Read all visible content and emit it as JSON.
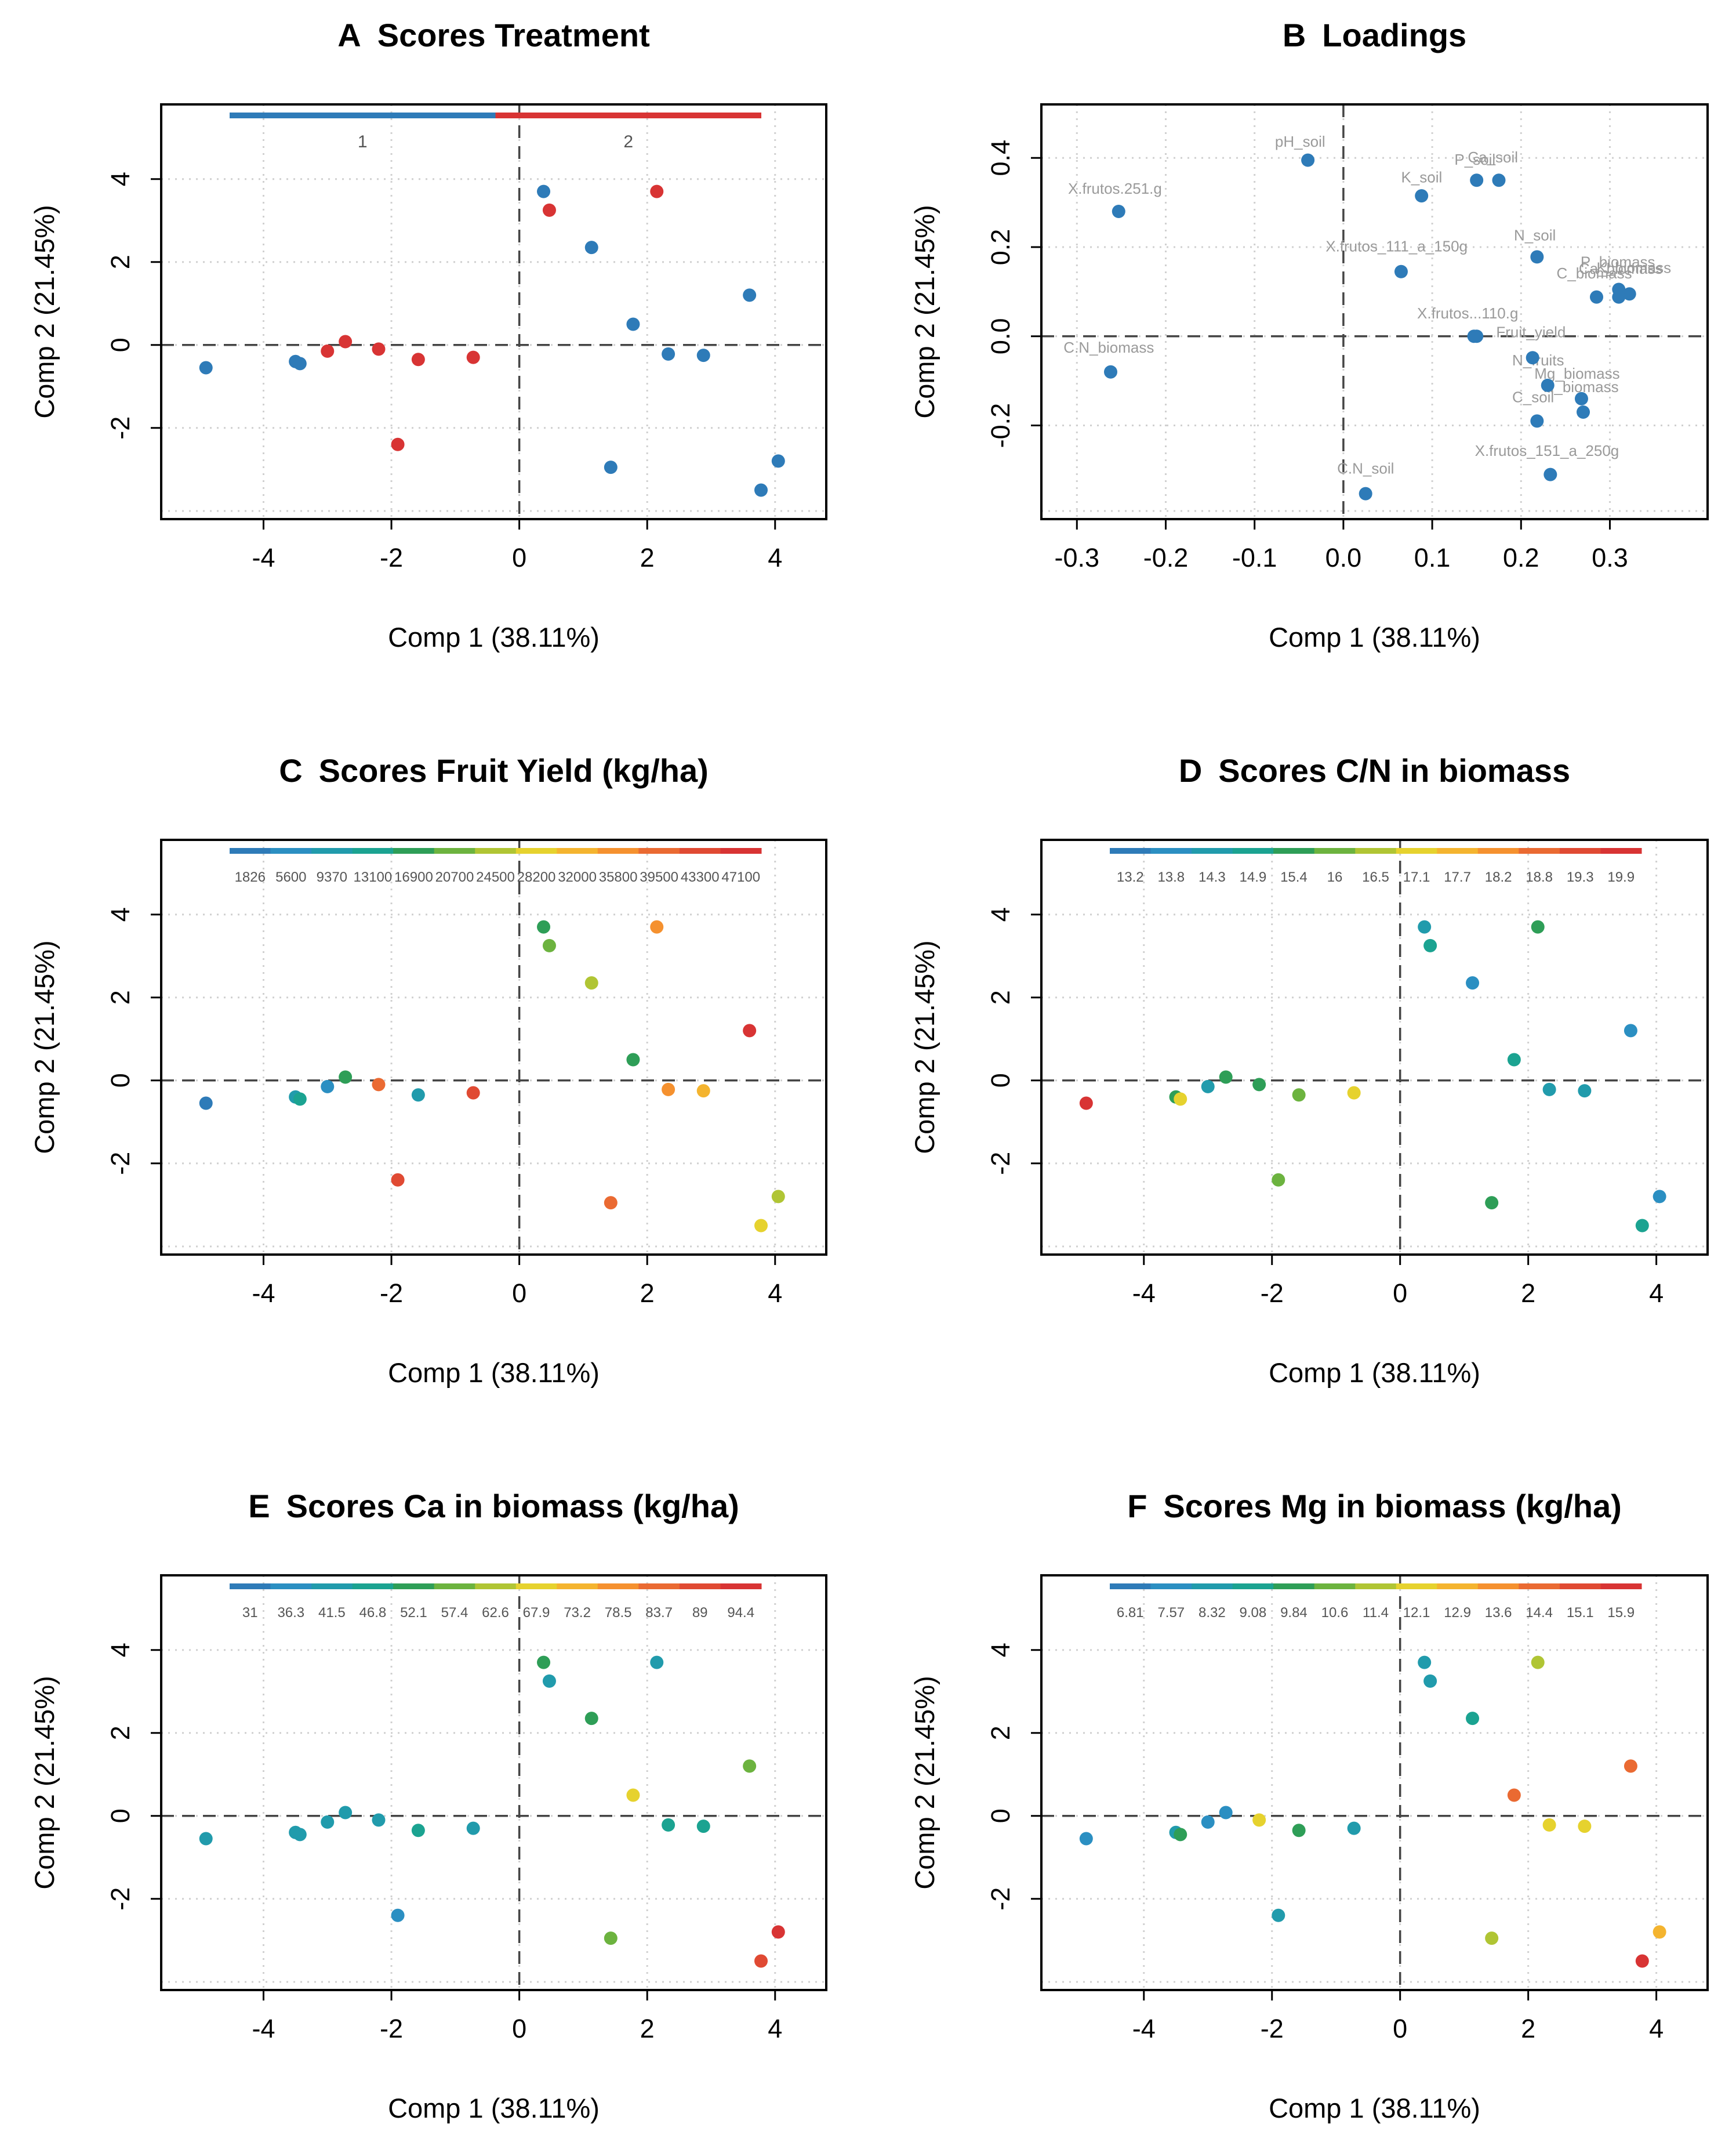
{
  "figure": {
    "shared_xlabel": "Comp 1 (38.11%)",
    "shared_ylabel": "Comp 2 (21.45%)"
  },
  "chart_data": [
    {
      "id": "A",
      "panel_letter": "A",
      "title": "Scores Treatment",
      "type": "scatter",
      "xlabel": "Comp 1 (38.11%)",
      "ylabel": "Comp 2 (21.45%)",
      "xlim": [
        -5.6,
        4.8
      ],
      "ylim": [
        -4.2,
        5.8
      ],
      "xticks": [
        -4,
        -2,
        0,
        2,
        4
      ],
      "yticks": [
        -2,
        0,
        2,
        4
      ],
      "grid": true,
      "reference_lines": {
        "x": 0,
        "y": 0
      },
      "legend": {
        "kind": "categorical",
        "position": "top",
        "entries": [
          {
            "label": "1",
            "color": "#2E7BB8"
          },
          {
            "label": "2",
            "color": "#D83434"
          }
        ]
      },
      "points": [
        {
          "x": -4.9,
          "y": -0.55,
          "color": "#2E7BB8"
        },
        {
          "x": -3.5,
          "y": -0.4,
          "color": "#2E7BB8"
        },
        {
          "x": -3.43,
          "y": -0.45,
          "color": "#2E7BB8"
        },
        {
          "x": -3.0,
          "y": -0.15,
          "color": "#D83434"
        },
        {
          "x": -2.72,
          "y": 0.08,
          "color": "#D83434"
        },
        {
          "x": -2.2,
          "y": -0.1,
          "color": "#D83434"
        },
        {
          "x": -1.58,
          "y": -0.35,
          "color": "#D83434"
        },
        {
          "x": -0.72,
          "y": -0.3,
          "color": "#D83434"
        },
        {
          "x": -1.9,
          "y": -2.4,
          "color": "#D83434"
        },
        {
          "x": 0.38,
          "y": 3.7,
          "color": "#2E7BB8"
        },
        {
          "x": 0.47,
          "y": 3.25,
          "color": "#D83434"
        },
        {
          "x": 2.15,
          "y": 3.7,
          "color": "#D83434"
        },
        {
          "x": 1.13,
          "y": 2.35,
          "color": "#2E7BB8"
        },
        {
          "x": 1.78,
          "y": 0.5,
          "color": "#2E7BB8"
        },
        {
          "x": 2.33,
          "y": -0.22,
          "color": "#2E7BB8"
        },
        {
          "x": 2.88,
          "y": -0.25,
          "color": "#2E7BB8"
        },
        {
          "x": 3.6,
          "y": 1.2,
          "color": "#2E7BB8"
        },
        {
          "x": 1.43,
          "y": -2.95,
          "color": "#2E7BB8"
        },
        {
          "x": 4.05,
          "y": -2.8,
          "color": "#2E7BB8"
        },
        {
          "x": 3.78,
          "y": -3.5,
          "color": "#2E7BB8"
        }
      ]
    },
    {
      "id": "B",
      "panel_letter": "B",
      "title": "Loadings",
      "type": "scatter",
      "xlabel": "Comp 1 (38.11%)",
      "ylabel": "Comp 2 (21.45%)",
      "xlim": [
        -0.34,
        0.41
      ],
      "ylim": [
        -0.41,
        0.52
      ],
      "xticks": [
        -0.3,
        -0.2,
        -0.1,
        0.0,
        0.1,
        0.2,
        0.3
      ],
      "yticks": [
        -0.2,
        0.0,
        0.2,
        0.4
      ],
      "xticklabels": [
        "-0.3",
        "-0.2",
        "-0.1",
        "0.0",
        "0.1",
        "0.2",
        "0.3"
      ],
      "yticklabels": [
        "-0.2",
        "0.0",
        "0.2",
        "0.4"
      ],
      "grid": true,
      "reference_lines": {
        "x": 0,
        "y": 0
      },
      "points": [
        {
          "x": -0.04,
          "y": 0.395,
          "color": "#2E7BB8",
          "label": "pH_soil",
          "lx": -0.077,
          "ly": 0.425
        },
        {
          "x": -0.253,
          "y": 0.28,
          "color": "#2E7BB8",
          "label": "X.frutos.251.g",
          "lx": -0.31,
          "ly": 0.32
        },
        {
          "x": 0.088,
          "y": 0.315,
          "color": "#2E7BB8",
          "label": "K_soil",
          "lx": 0.065,
          "ly": 0.345
        },
        {
          "x": 0.15,
          "y": 0.35,
          "color": "#2E7BB8",
          "label": "P_soil",
          "lx": 0.125,
          "ly": 0.385
        },
        {
          "x": 0.175,
          "y": 0.35,
          "color": "#2E7BB8",
          "label": "Ca_soil",
          "lx": 0.14,
          "ly": 0.39
        },
        {
          "x": 0.065,
          "y": 0.145,
          "color": "#2E7BB8",
          "label": "X.frutos_111_a_150g",
          "lx": -0.02,
          "ly": 0.19
        },
        {
          "x": 0.218,
          "y": 0.178,
          "color": "#2E7BB8",
          "label": "N_soil",
          "lx": 0.192,
          "ly": 0.215
        },
        {
          "x": 0.31,
          "y": 0.105,
          "color": "#2E7BB8",
          "label": "P_biomass",
          "lx": 0.267,
          "ly": 0.155
        },
        {
          "x": 0.322,
          "y": 0.095,
          "color": "#2E7BB8",
          "label": "C_biomass",
          "lx": 0.24,
          "ly": 0.13
        },
        {
          "x": 0.285,
          "y": 0.088,
          "color": "#2E7BB8",
          "label": "Ca_biomass",
          "lx": 0.265,
          "ly": 0.14
        },
        {
          "x": 0.31,
          "y": 0.088,
          "color": "#2E7BB8",
          "label": "K_biomass",
          "lx": 0.285,
          "ly": 0.142
        },
        {
          "x": 0.147,
          "y": 0.0,
          "color": "#2E7BB8",
          "label": "X.frutos...110.g",
          "lx": 0.083,
          "ly": 0.04
        },
        {
          "x": 0.15,
          "y": 0.0,
          "color": "#2E7BB8",
          "label": "Fruit_yield",
          "lx": 0.172,
          "ly": -0.002
        },
        {
          "x": 0.213,
          "y": -0.048,
          "color": "#2E7BB8",
          "label": "N_fruits",
          "lx": 0.19,
          "ly": -0.065
        },
        {
          "x": 0.23,
          "y": -0.11,
          "color": "#2E7BB8",
          "label": "Mg_biomass",
          "lx": 0.215,
          "ly": -0.095
        },
        {
          "x": 0.268,
          "y": -0.14,
          "color": "#2E7BB8",
          "label": "N_biomass",
          "lx": 0.225,
          "ly": -0.125
        },
        {
          "x": 0.27,
          "y": -0.17,
          "color": "#2E7BB8",
          "label": "C_soil",
          "lx": 0.19,
          "ly": -0.148
        },
        {
          "x": 0.218,
          "y": -0.19,
          "color": "#2E7BB8",
          "label": "",
          "lx": 0.0,
          "ly": 0.0
        },
        {
          "x": 0.233,
          "y": -0.31,
          "color": "#2E7BB8",
          "label": "X.frutos_151_a_250g",
          "lx": 0.148,
          "ly": -0.268
        },
        {
          "x": 0.025,
          "y": -0.353,
          "color": "#2E7BB8",
          "label": "C.N_soil",
          "lx": -0.007,
          "ly": -0.308
        },
        {
          "x": -0.262,
          "y": -0.08,
          "color": "#2E7BB8",
          "label": "C.N_biomass",
          "lx": -0.315,
          "ly": -0.037
        }
      ]
    },
    {
      "id": "C",
      "panel_letter": "C",
      "title": "Scores Fruit Yield (kg/ha)",
      "type": "scatter",
      "xlabel": "Comp 1 (38.11%)",
      "ylabel": "Comp 2 (21.45%)",
      "xlim": [
        -5.6,
        4.8
      ],
      "ylim": [
        -4.2,
        5.8
      ],
      "xticks": [
        -4,
        -2,
        0,
        2,
        4
      ],
      "yticks": [
        -2,
        0,
        2,
        4
      ],
      "grid": true,
      "reference_lines": {
        "x": 0,
        "y": 0
      },
      "legend": {
        "kind": "gradient",
        "position": "top",
        "colors": [
          "#2E7BB8",
          "#2B8FC2",
          "#219BAC",
          "#1BA391",
          "#2E9E57",
          "#6CB33F",
          "#B0C534",
          "#E6D22E",
          "#F4B42F",
          "#F5912F",
          "#EA6A32",
          "#E04A33",
          "#D83434"
        ],
        "labels": [
          "1826",
          "5600",
          "9370",
          "13100",
          "16900",
          "20700",
          "24500",
          "28200",
          "32000",
          "35800",
          "39500",
          "43300",
          "47100"
        ]
      },
      "points": [
        {
          "x": -4.9,
          "y": -0.55,
          "color": "#2E7BB8"
        },
        {
          "x": -3.5,
          "y": -0.4,
          "color": "#219BAC"
        },
        {
          "x": -3.43,
          "y": -0.45,
          "color": "#1BA391"
        },
        {
          "x": -3.0,
          "y": -0.15,
          "color": "#2B8FC2"
        },
        {
          "x": -2.72,
          "y": 0.08,
          "color": "#2E9E57"
        },
        {
          "x": -2.2,
          "y": -0.1,
          "color": "#EA6A32"
        },
        {
          "x": -1.58,
          "y": -0.35,
          "color": "#219BAC"
        },
        {
          "x": -0.72,
          "y": -0.3,
          "color": "#E04A33"
        },
        {
          "x": -1.9,
          "y": -2.4,
          "color": "#E04A33"
        },
        {
          "x": 0.38,
          "y": 3.7,
          "color": "#2E9E57"
        },
        {
          "x": 0.47,
          "y": 3.25,
          "color": "#6CB33F"
        },
        {
          "x": 2.15,
          "y": 3.7,
          "color": "#F5912F"
        },
        {
          "x": 1.13,
          "y": 2.35,
          "color": "#B0C534"
        },
        {
          "x": 1.78,
          "y": 0.5,
          "color": "#2E9E57"
        },
        {
          "x": 2.33,
          "y": -0.22,
          "color": "#F5912F"
        },
        {
          "x": 2.88,
          "y": -0.25,
          "color": "#F4B42F"
        },
        {
          "x": 3.6,
          "y": 1.2,
          "color": "#D83434"
        },
        {
          "x": 1.43,
          "y": -2.95,
          "color": "#EA6A32"
        },
        {
          "x": 4.05,
          "y": -2.8,
          "color": "#B0C534"
        },
        {
          "x": 3.78,
          "y": -3.5,
          "color": "#E6D22E"
        }
      ]
    },
    {
      "id": "D",
      "panel_letter": "D",
      "title": "Scores C/N in biomass",
      "type": "scatter",
      "xlabel": "Comp 1 (38.11%)",
      "ylabel": "Comp 2 (21.45%)",
      "xlim": [
        -5.6,
        4.8
      ],
      "ylim": [
        -4.2,
        5.8
      ],
      "xticks": [
        -4,
        -2,
        0,
        2,
        4
      ],
      "yticks": [
        -2,
        0,
        2,
        4
      ],
      "grid": true,
      "reference_lines": {
        "x": 0,
        "y": 0
      },
      "legend": {
        "kind": "gradient",
        "position": "top",
        "colors": [
          "#2E7BB8",
          "#2B8FC2",
          "#219BAC",
          "#1BA391",
          "#2E9E57",
          "#6CB33F",
          "#B0C534",
          "#E6D22E",
          "#F4B42F",
          "#F5912F",
          "#EA6A32",
          "#E04A33",
          "#D83434"
        ],
        "labels": [
          "13.2",
          "13.8",
          "14.3",
          "14.9",
          "15.4",
          "16",
          "16.5",
          "17.1",
          "17.7",
          "18.2",
          "18.8",
          "19.3",
          "19.9"
        ]
      },
      "points": [
        {
          "x": -4.9,
          "y": -0.55,
          "color": "#D83434"
        },
        {
          "x": -3.5,
          "y": -0.4,
          "color": "#2E9E57"
        },
        {
          "x": -3.43,
          "y": -0.45,
          "color": "#E6D22E"
        },
        {
          "x": -3.0,
          "y": -0.15,
          "color": "#219BAC"
        },
        {
          "x": -2.72,
          "y": 0.08,
          "color": "#2E9E57"
        },
        {
          "x": -2.2,
          "y": -0.1,
          "color": "#2E9E57"
        },
        {
          "x": -1.58,
          "y": -0.35,
          "color": "#6CB33F"
        },
        {
          "x": -0.72,
          "y": -0.3,
          "color": "#E6D22E"
        },
        {
          "x": -1.9,
          "y": -2.4,
          "color": "#6CB33F"
        },
        {
          "x": 0.38,
          "y": 3.7,
          "color": "#219BAC"
        },
        {
          "x": 0.47,
          "y": 3.25,
          "color": "#1BA391"
        },
        {
          "x": 2.15,
          "y": 3.7,
          "color": "#2E9E57"
        },
        {
          "x": 1.13,
          "y": 2.35,
          "color": "#2B8FC2"
        },
        {
          "x": 1.78,
          "y": 0.5,
          "color": "#1BA391"
        },
        {
          "x": 2.33,
          "y": -0.22,
          "color": "#219BAC"
        },
        {
          "x": 2.88,
          "y": -0.25,
          "color": "#219BAC"
        },
        {
          "x": 3.6,
          "y": 1.2,
          "color": "#2B8FC2"
        },
        {
          "x": 1.43,
          "y": -2.95,
          "color": "#2E9E57"
        },
        {
          "x": 4.05,
          "y": -2.8,
          "color": "#2B8FC2"
        },
        {
          "x": 3.78,
          "y": -3.5,
          "color": "#1BA391"
        }
      ]
    },
    {
      "id": "E",
      "panel_letter": "E",
      "title": "Scores Ca in biomass (kg/ha)",
      "type": "scatter",
      "xlabel": "Comp 1 (38.11%)",
      "ylabel": "Comp 2 (21.45%)",
      "xlim": [
        -5.6,
        4.8
      ],
      "ylim": [
        -4.2,
        5.8
      ],
      "xticks": [
        -4,
        -2,
        0,
        2,
        4
      ],
      "yticks": [
        -2,
        0,
        2,
        4
      ],
      "grid": true,
      "reference_lines": {
        "x": 0,
        "y": 0
      },
      "legend": {
        "kind": "gradient",
        "position": "top",
        "colors": [
          "#2E7BB8",
          "#2B8FC2",
          "#219BAC",
          "#1BA391",
          "#2E9E57",
          "#6CB33F",
          "#B0C534",
          "#E6D22E",
          "#F4B42F",
          "#F5912F",
          "#EA6A32",
          "#E04A33",
          "#D83434"
        ],
        "labels": [
          "31",
          "36.3",
          "41.5",
          "46.8",
          "52.1",
          "57.4",
          "62.6",
          "67.9",
          "73.2",
          "78.5",
          "83.7",
          "89",
          "94.4"
        ]
      },
      "points": [
        {
          "x": -4.9,
          "y": -0.55,
          "color": "#219BAC"
        },
        {
          "x": -3.5,
          "y": -0.4,
          "color": "#219BAC"
        },
        {
          "x": -3.43,
          "y": -0.45,
          "color": "#219BAC"
        },
        {
          "x": -3.0,
          "y": -0.15,
          "color": "#219BAC"
        },
        {
          "x": -2.72,
          "y": 0.08,
          "color": "#219BAC"
        },
        {
          "x": -2.2,
          "y": -0.1,
          "color": "#219BAC"
        },
        {
          "x": -1.58,
          "y": -0.35,
          "color": "#1BA391"
        },
        {
          "x": -0.72,
          "y": -0.3,
          "color": "#219BAC"
        },
        {
          "x": -1.9,
          "y": -2.4,
          "color": "#2B8FC2"
        },
        {
          "x": 0.38,
          "y": 3.7,
          "color": "#2E9E57"
        },
        {
          "x": 0.47,
          "y": 3.25,
          "color": "#219BAC"
        },
        {
          "x": 2.15,
          "y": 3.7,
          "color": "#219BAC"
        },
        {
          "x": 1.13,
          "y": 2.35,
          "color": "#2E9E57"
        },
        {
          "x": 1.78,
          "y": 0.5,
          "color": "#E6D22E"
        },
        {
          "x": 2.33,
          "y": -0.22,
          "color": "#1BA391"
        },
        {
          "x": 2.88,
          "y": -0.25,
          "color": "#1BA391"
        },
        {
          "x": 3.6,
          "y": 1.2,
          "color": "#6CB33F"
        },
        {
          "x": 1.43,
          "y": -2.95,
          "color": "#6CB33F"
        },
        {
          "x": 4.05,
          "y": -2.8,
          "color": "#D83434"
        },
        {
          "x": 3.78,
          "y": -3.5,
          "color": "#E04A33"
        }
      ]
    },
    {
      "id": "F",
      "panel_letter": "F",
      "title": "Scores Mg in biomass (kg/ha)",
      "type": "scatter",
      "xlabel": "Comp 1 (38.11%)",
      "ylabel": "Comp 2 (21.45%)",
      "xlim": [
        -5.6,
        4.8
      ],
      "ylim": [
        -4.2,
        5.8
      ],
      "xticks": [
        -4,
        -2,
        0,
        2,
        4
      ],
      "yticks": [
        -2,
        0,
        2,
        4
      ],
      "grid": true,
      "reference_lines": {
        "x": 0,
        "y": 0
      },
      "legend": {
        "kind": "gradient",
        "position": "top",
        "colors": [
          "#2E7BB8",
          "#2B8FC2",
          "#219BAC",
          "#1BA391",
          "#2E9E57",
          "#6CB33F",
          "#B0C534",
          "#E6D22E",
          "#F4B42F",
          "#F5912F",
          "#EA6A32",
          "#E04A33",
          "#D83434"
        ],
        "labels": [
          "6.81",
          "7.57",
          "8.32",
          "9.08",
          "9.84",
          "10.6",
          "11.4",
          "12.1",
          "12.9",
          "13.6",
          "14.4",
          "15.1",
          "15.9"
        ]
      },
      "points": [
        {
          "x": -4.9,
          "y": -0.55,
          "color": "#2B8FC2"
        },
        {
          "x": -3.5,
          "y": -0.4,
          "color": "#219BAC"
        },
        {
          "x": -3.43,
          "y": -0.45,
          "color": "#2E9E57"
        },
        {
          "x": -3.0,
          "y": -0.15,
          "color": "#2B8FC2"
        },
        {
          "x": -2.72,
          "y": 0.08,
          "color": "#2B8FC2"
        },
        {
          "x": -2.2,
          "y": -0.1,
          "color": "#E6D22E"
        },
        {
          "x": -1.58,
          "y": -0.35,
          "color": "#2E9E57"
        },
        {
          "x": -0.72,
          "y": -0.3,
          "color": "#219BAC"
        },
        {
          "x": -1.9,
          "y": -2.4,
          "color": "#219BAC"
        },
        {
          "x": 0.38,
          "y": 3.7,
          "color": "#219BAC"
        },
        {
          "x": 0.47,
          "y": 3.25,
          "color": "#219BAC"
        },
        {
          "x": 2.15,
          "y": 3.7,
          "color": "#B0C534"
        },
        {
          "x": 1.13,
          "y": 2.35,
          "color": "#1BA391"
        },
        {
          "x": 1.78,
          "y": 0.5,
          "color": "#EA6A32"
        },
        {
          "x": 2.33,
          "y": -0.22,
          "color": "#E6D22E"
        },
        {
          "x": 2.88,
          "y": -0.25,
          "color": "#E6D22E"
        },
        {
          "x": 3.6,
          "y": 1.2,
          "color": "#EA6A32"
        },
        {
          "x": 1.43,
          "y": -2.95,
          "color": "#B0C534"
        },
        {
          "x": 4.05,
          "y": -2.8,
          "color": "#F4B42F"
        },
        {
          "x": 3.78,
          "y": -3.5,
          "color": "#D83434"
        }
      ]
    }
  ]
}
